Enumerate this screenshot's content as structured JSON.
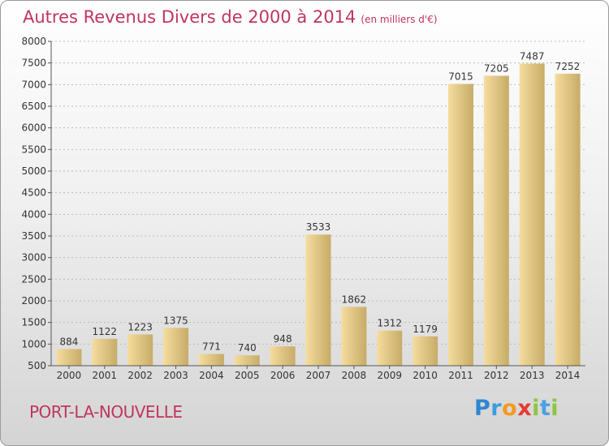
{
  "title": {
    "main": "Autres Revenus Divers de 2000 à 2014",
    "unit": "(en milliers d'€)"
  },
  "footer": {
    "city": "PORT-LA-NOUVELLE"
  },
  "logo": {
    "letters": [
      {
        "ch": "P",
        "color": "#2e86d0"
      },
      {
        "ch": "r",
        "color": "#3a9de0"
      },
      {
        "ch": "o",
        "color": "#f39a1e"
      },
      {
        "ch": "x",
        "color": "#e53a30"
      },
      {
        "ch": "i",
        "color": "#8cc63f"
      },
      {
        "ch": "t",
        "color": "#4aa1e0"
      },
      {
        "ch": "i",
        "color": "#8cc63f"
      }
    ]
  },
  "colors": {
    "bar_light": "#f5dd9f",
    "bar_dark": "#c7ab67",
    "title": "#c0355e"
  },
  "chart_data": {
    "type": "bar",
    "categories": [
      "2000",
      "2001",
      "2002",
      "2003",
      "2004",
      "2005",
      "2006",
      "2007",
      "2008",
      "2009",
      "2010",
      "2011",
      "2012",
      "2013",
      "2014"
    ],
    "values": [
      884,
      1122,
      1223,
      1375,
      771,
      740,
      948,
      3533,
      1862,
      1312,
      1179,
      7015,
      7205,
      7487,
      7252
    ],
    "ylim": [
      500,
      8000
    ],
    "yticks": [
      500,
      1000,
      1500,
      2000,
      2500,
      3000,
      3500,
      4000,
      4500,
      5000,
      5500,
      6000,
      6500,
      7000,
      7500,
      8000
    ],
    "grid": true,
    "title": "Autres Revenus Divers de 2000 à 2014",
    "xlabel": "",
    "ylabel": ""
  }
}
